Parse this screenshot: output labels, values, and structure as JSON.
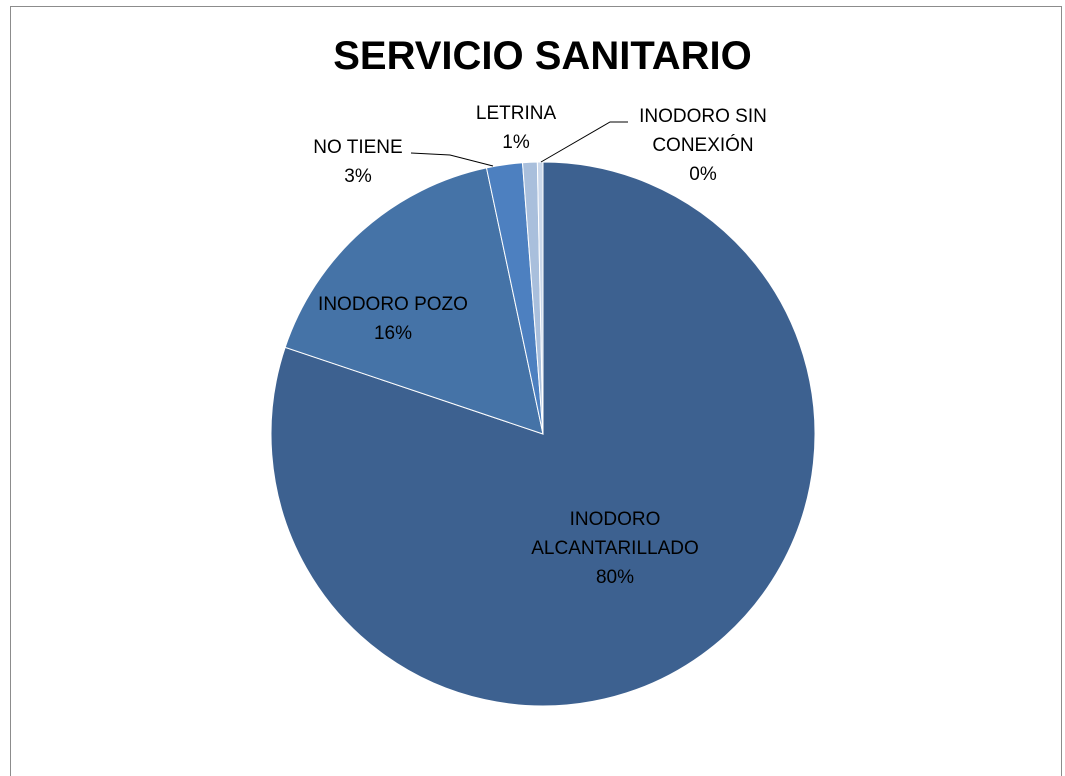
{
  "chart_data": {
    "type": "pie",
    "title": "SERVICIO SANITARIO",
    "slices": [
      {
        "name": "INODORO ALCANTARILLADO",
        "value": 80,
        "label_lines": [
          "INODORO",
          "ALCANTARILLADO",
          "80%"
        ],
        "color": "#3d6190"
      },
      {
        "name": "INODORO POZO",
        "value": 16,
        "label_lines": [
          "INODORO POZO",
          "16%"
        ],
        "color": "#4573a7"
      },
      {
        "name": "NO TIENE",
        "value": 3,
        "label_lines": [
          "NO TIENE",
          "3%"
        ],
        "color": "#4d80c0"
      },
      {
        "name": "LETRINA",
        "value": 1,
        "label_lines": [
          "LETRINA",
          "1%"
        ],
        "color": "#a9bfdc"
      },
      {
        "name": "INODORO SIN CONEXIÓN",
        "value": 0,
        "label_lines": [
          "INODORO SIN",
          "CONEXIÓN",
          "0%"
        ],
        "color": "#cbd8eb"
      }
    ]
  }
}
